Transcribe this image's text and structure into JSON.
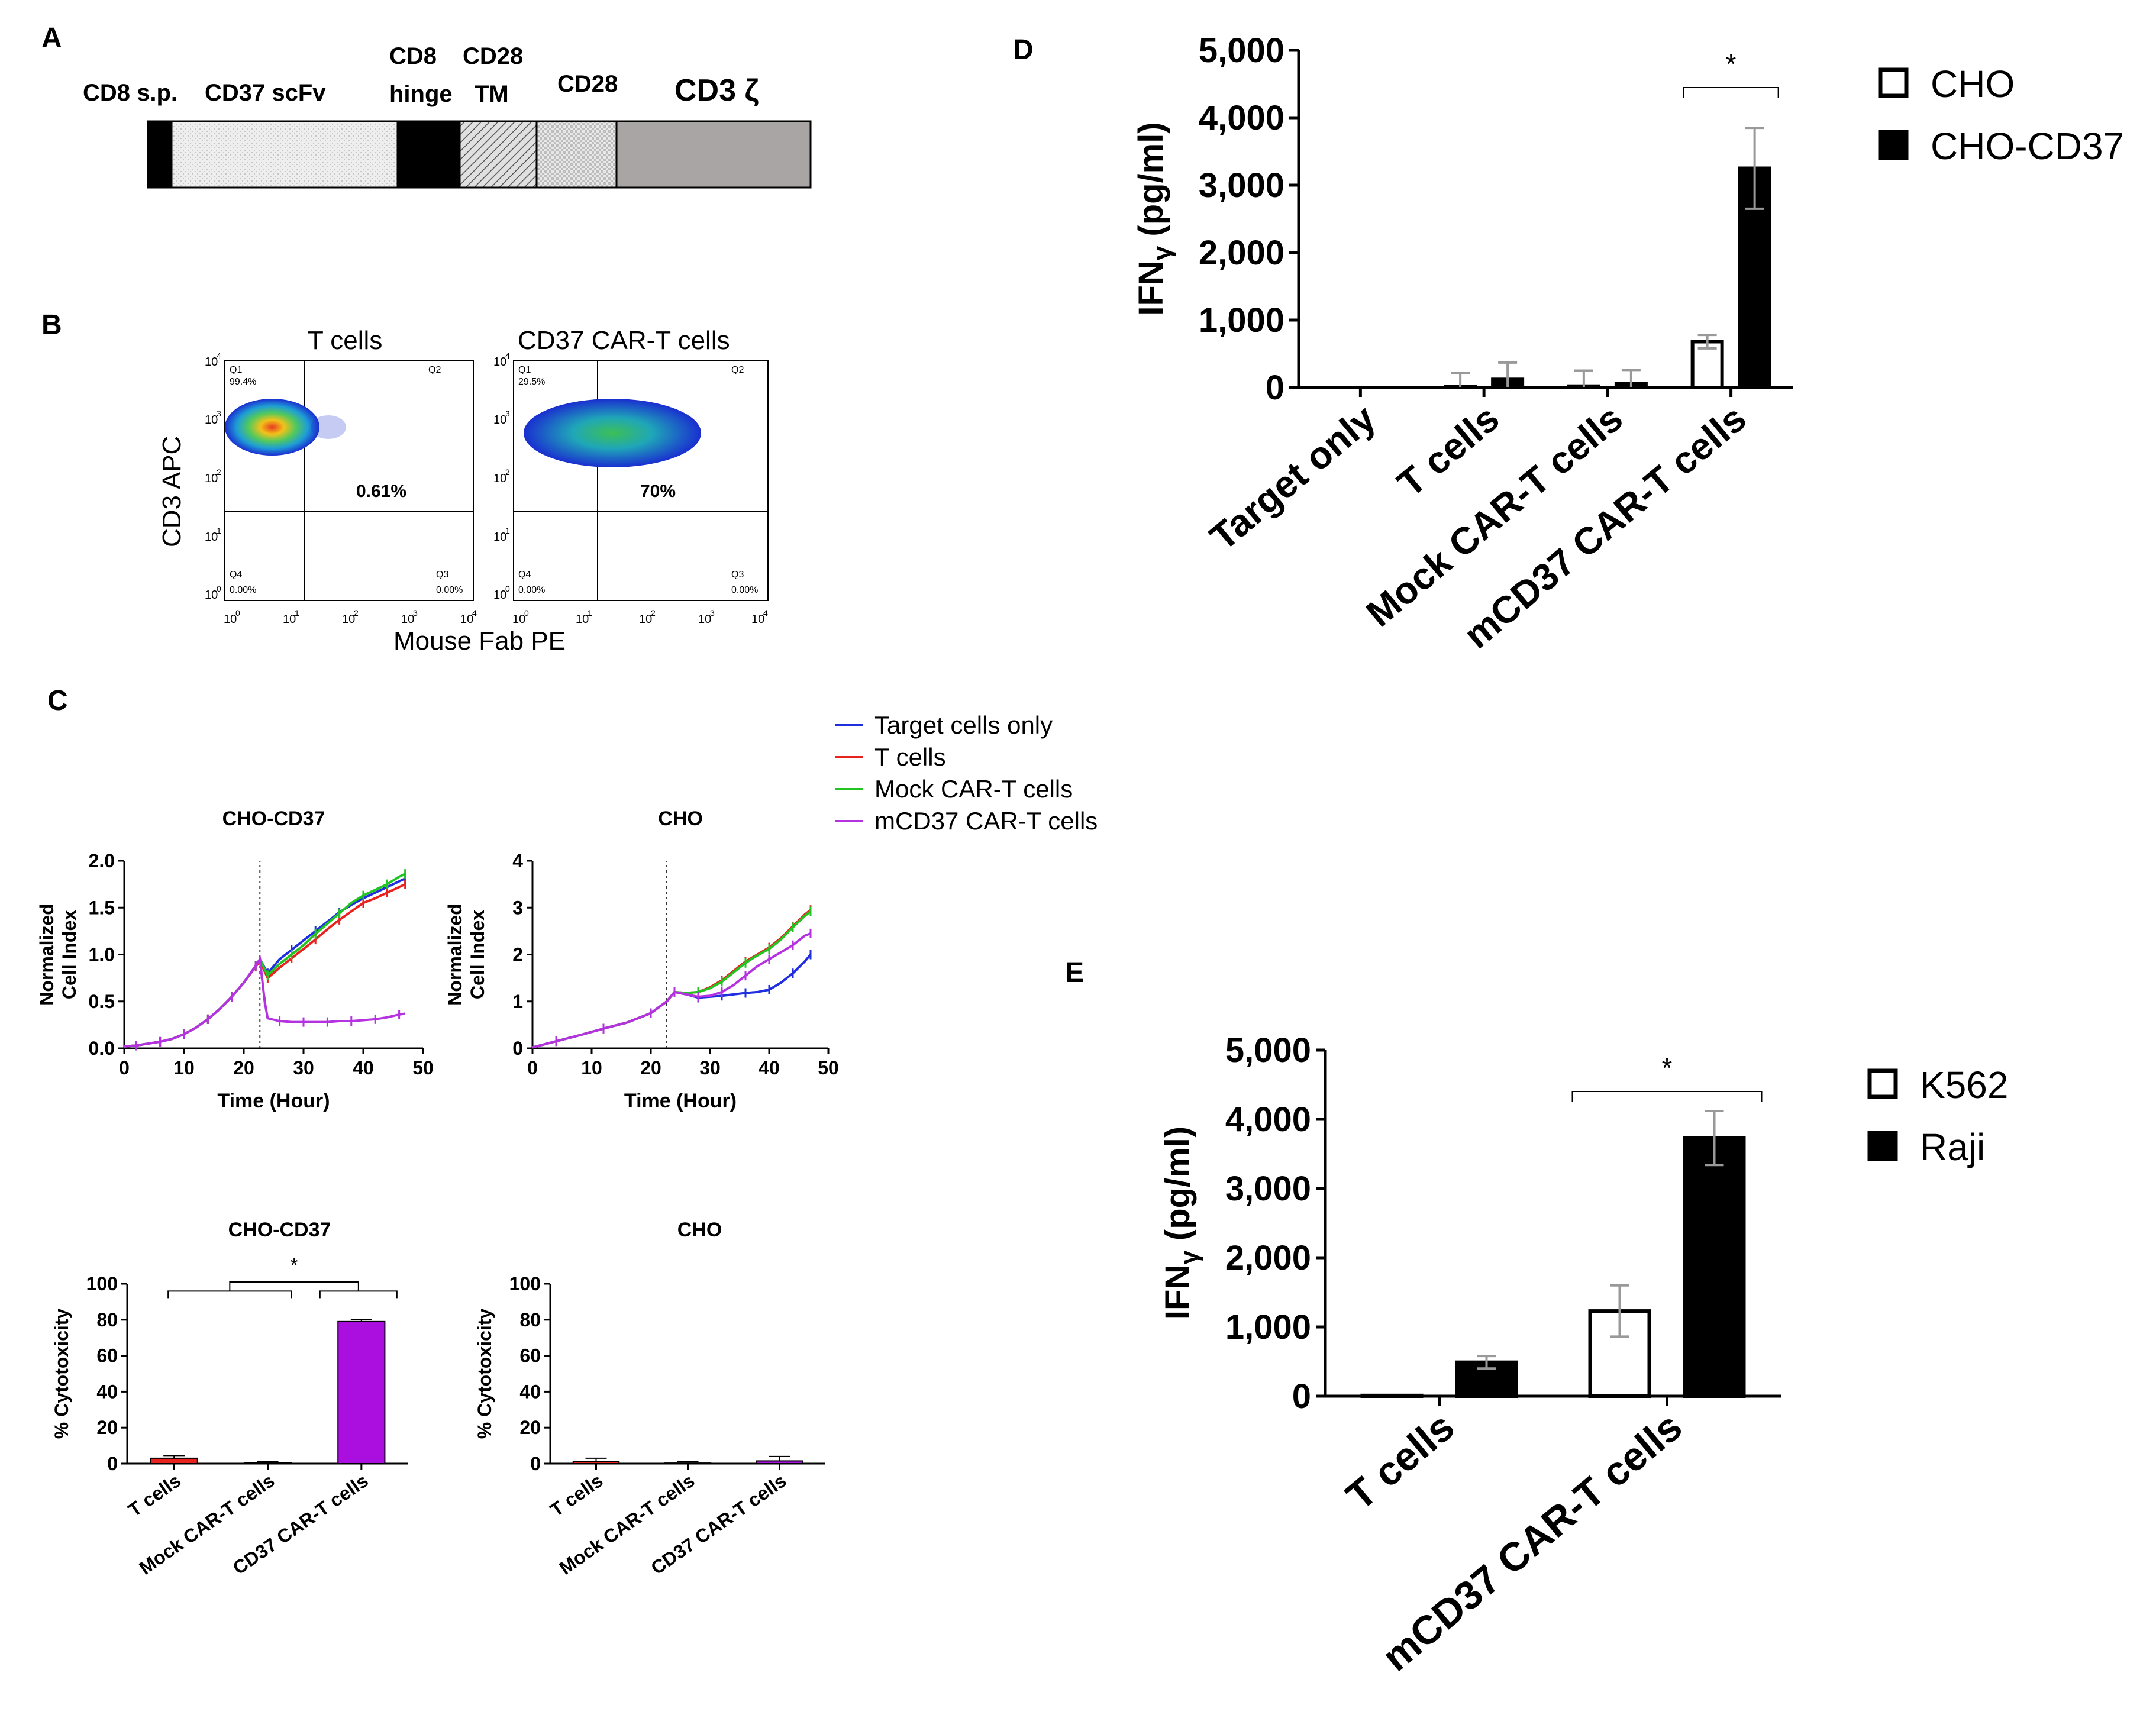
{
  "panels": {
    "A": {
      "label": "A",
      "segments": [
        {
          "label": "CD8 s.p.",
          "color": "#000000",
          "pattern": "solid"
        },
        {
          "label": "CD37 scFv",
          "color": "#eeeeee",
          "pattern": "dots-light"
        },
        {
          "label": "CD8 hinge",
          "line1": "CD8",
          "line2": "hinge",
          "color": "#000000",
          "pattern": "solid"
        },
        {
          "label": "CD28 TM",
          "line1": "CD28",
          "line2": "TM",
          "color": "#dddddd",
          "pattern": "diagonal"
        },
        {
          "label": "CD28",
          "color": "#e5e5e5",
          "pattern": "checker"
        },
        {
          "label": "CD3 ζ",
          "color": "#aaa5a5",
          "pattern": "solid"
        }
      ]
    },
    "B": {
      "label": "B",
      "plots": [
        {
          "title": "T cells",
          "q1": "Q1",
          "q1_pct": "99.4%",
          "q2": "Q2",
          "q3": "Q3",
          "q3_pct": "0.00%",
          "q4": "Q4",
          "q4_pct": "0.00%",
          "center_pct": "0.61%"
        },
        {
          "title": "CD37 CAR-T cells",
          "q1": "Q1",
          "q1_pct": "29.5%",
          "q2": "Q2",
          "q3": "Q3",
          "q3_pct": "0.00%",
          "q4": "Q4",
          "q4_pct": "0.00%",
          "center_pct": "70%"
        }
      ],
      "ylabel": "CD3 APC",
      "xlabel": "Mouse Fab PE",
      "ticks": [
        "10",
        "10",
        "10",
        "10",
        "10"
      ],
      "exponents": [
        "0",
        "1",
        "2",
        "3",
        "4"
      ]
    },
    "C": {
      "label": "C"
    },
    "D": {
      "label": "D"
    },
    "E": {
      "label": "E"
    }
  },
  "legend_c": [
    {
      "label": "Target cells only",
      "color": "#1f2fe0"
    },
    {
      "label": "T cells",
      "color": "#e8231f"
    },
    {
      "label": "Mock CAR-T cells",
      "color": "#22c422"
    },
    {
      "label": "mCD37 CAR-T cells",
      "color": "#b532e0"
    }
  ],
  "chart_data": [
    {
      "id": "c1",
      "type": "line",
      "title": "CHO-CD37",
      "xlabel": "Time (Hour)",
      "ylabel": "Normalized Cell Index",
      "ylabel_lines": [
        "Normalized",
        "Cell  Index"
      ],
      "xlim": [
        0,
        50
      ],
      "ylim": [
        0,
        2.0
      ],
      "xticks": [
        0,
        10,
        20,
        30,
        40,
        50
      ],
      "yticks": [
        0,
        0.5,
        1.0,
        1.5,
        2.0
      ],
      "ytick_labels": [
        "0.0",
        "0.5",
        "1.0",
        "1.5",
        "2.0"
      ],
      "vline": 22.7,
      "series": [
        {
          "name": "Target cells only",
          "color": "#1f2fe0",
          "x": [
            0,
            2,
            4,
            6,
            8,
            10,
            12,
            14,
            16,
            18,
            20,
            22,
            22.7,
            24,
            26,
            28,
            30,
            32,
            34,
            36,
            38,
            40,
            42,
            44,
            46,
            47
          ],
          "y": [
            0.02,
            0.03,
            0.05,
            0.07,
            0.1,
            0.15,
            0.22,
            0.31,
            0.42,
            0.55,
            0.7,
            0.88,
            0.95,
            0.8,
            0.95,
            1.05,
            1.15,
            1.25,
            1.35,
            1.45,
            1.53,
            1.6,
            1.66,
            1.72,
            1.78,
            1.81
          ]
        },
        {
          "name": "T cells",
          "color": "#e8231f",
          "x": [
            0,
            2,
            4,
            6,
            8,
            10,
            12,
            14,
            16,
            18,
            20,
            22,
            22.7,
            24,
            26,
            28,
            30,
            32,
            34,
            36,
            38,
            40,
            42,
            44,
            46,
            47
          ],
          "y": [
            0.02,
            0.03,
            0.05,
            0.07,
            0.1,
            0.15,
            0.22,
            0.31,
            0.42,
            0.55,
            0.7,
            0.87,
            0.93,
            0.75,
            0.86,
            0.96,
            1.06,
            1.16,
            1.27,
            1.37,
            1.46,
            1.55,
            1.6,
            1.66,
            1.72,
            1.75
          ]
        },
        {
          "name": "Mock CAR-T cells",
          "color": "#22c422",
          "x": [
            0,
            2,
            4,
            6,
            8,
            10,
            12,
            14,
            16,
            18,
            20,
            22,
            22.7,
            24,
            26,
            28,
            30,
            32,
            34,
            36,
            38,
            40,
            42,
            44,
            46,
            47
          ],
          "y": [
            0.02,
            0.03,
            0.05,
            0.07,
            0.1,
            0.15,
            0.22,
            0.31,
            0.42,
            0.55,
            0.7,
            0.88,
            0.95,
            0.78,
            0.9,
            1.0,
            1.1,
            1.22,
            1.33,
            1.44,
            1.55,
            1.63,
            1.69,
            1.75,
            1.83,
            1.86
          ]
        },
        {
          "name": "mCD37 CAR-T cells",
          "color": "#b532e0",
          "x": [
            0,
            2,
            4,
            6,
            8,
            10,
            12,
            14,
            16,
            18,
            20,
            22,
            22.7,
            23.5,
            24,
            26,
            28,
            30,
            32,
            34,
            36,
            38,
            40,
            42,
            44,
            46,
            47
          ],
          "y": [
            0.02,
            0.03,
            0.05,
            0.07,
            0.1,
            0.15,
            0.22,
            0.31,
            0.42,
            0.55,
            0.7,
            0.88,
            0.95,
            0.5,
            0.32,
            0.29,
            0.28,
            0.28,
            0.28,
            0.28,
            0.29,
            0.29,
            0.3,
            0.31,
            0.33,
            0.36,
            0.37
          ]
        }
      ]
    },
    {
      "id": "c2",
      "type": "line",
      "title": "CHO",
      "xlabel": "Time (Hour)",
      "ylabel": "Normalized Cell Index",
      "ylabel_lines": [
        "Normalized",
        "Cell  Index"
      ],
      "xlim": [
        0,
        50
      ],
      "ylim": [
        0,
        4
      ],
      "xticks": [
        0,
        10,
        20,
        30,
        40,
        50
      ],
      "yticks": [
        0,
        1,
        2,
        3,
        4
      ],
      "ytick_labels": [
        "0",
        "1",
        "2",
        "3",
        "4"
      ],
      "vline": 22.7,
      "series": [
        {
          "name": "Target cells only",
          "color": "#1f2fe0",
          "x": [
            0,
            4,
            8,
            12,
            16,
            20,
            22.7,
            24,
            26,
            28,
            30,
            32,
            34,
            36,
            38,
            40,
            42,
            44,
            46,
            47
          ],
          "y": [
            0.02,
            0.15,
            0.28,
            0.42,
            0.55,
            0.75,
            1.0,
            1.2,
            1.15,
            1.08,
            1.1,
            1.12,
            1.15,
            1.18,
            1.2,
            1.25,
            1.4,
            1.6,
            1.85,
            2.0
          ]
        },
        {
          "name": "T cells",
          "color": "#e8231f",
          "x": [
            0,
            4,
            8,
            12,
            16,
            20,
            22.7,
            24,
            26,
            28,
            30,
            32,
            34,
            36,
            38,
            40,
            42,
            44,
            46,
            47
          ],
          "y": [
            0.02,
            0.15,
            0.28,
            0.42,
            0.55,
            0.75,
            1.0,
            1.2,
            1.18,
            1.2,
            1.3,
            1.45,
            1.65,
            1.85,
            2.0,
            2.15,
            2.35,
            2.6,
            2.85,
            2.95
          ]
        },
        {
          "name": "Mock CAR-T cells",
          "color": "#22c422",
          "x": [
            0,
            4,
            8,
            12,
            16,
            20,
            22.7,
            24,
            26,
            28,
            30,
            32,
            34,
            36,
            38,
            40,
            42,
            44,
            46,
            47
          ],
          "y": [
            0.02,
            0.15,
            0.28,
            0.42,
            0.55,
            0.75,
            1.0,
            1.2,
            1.18,
            1.2,
            1.28,
            1.42,
            1.62,
            1.82,
            1.98,
            2.12,
            2.32,
            2.58,
            2.82,
            2.92
          ]
        },
        {
          "name": "mCD37 CAR-T cells",
          "color": "#b532e0",
          "x": [
            0,
            4,
            8,
            12,
            16,
            20,
            22.7,
            24,
            26,
            28,
            30,
            32,
            34,
            36,
            38,
            40,
            42,
            44,
            46,
            47
          ],
          "y": [
            0.02,
            0.15,
            0.28,
            0.42,
            0.55,
            0.75,
            1.0,
            1.2,
            1.15,
            1.1,
            1.12,
            1.2,
            1.35,
            1.55,
            1.75,
            1.9,
            2.05,
            2.2,
            2.4,
            2.45
          ]
        }
      ]
    },
    {
      "id": "c3",
      "type": "bar",
      "title": "CHO-CD37",
      "ylabel": "% Cytotoxicity",
      "ylim": [
        0,
        100
      ],
      "yticks": [
        0,
        20,
        40,
        60,
        80,
        100
      ],
      "categories": [
        "T cells",
        "Mock CAR-T cells",
        "CD37 CAR-T cells"
      ],
      "values": [
        3,
        0.5,
        79
      ],
      "errors": [
        1.5,
        0.5,
        1.2
      ],
      "colors": [
        "#e8231f",
        "#22c422",
        "#aa0fe0"
      ],
      "significance": "*"
    },
    {
      "id": "c4",
      "type": "bar",
      "title": "CHO",
      "ylabel": "% Cytotoxicity",
      "ylim": [
        0,
        100
      ],
      "yticks": [
        0,
        20,
        40,
        60,
        80,
        100
      ],
      "categories": [
        "T cells",
        "Mock CAR-T cells",
        "CD37 CAR-T cells"
      ],
      "values": [
        1,
        0.3,
        1.5
      ],
      "errors": [
        2,
        0.8,
        2.5
      ],
      "colors": [
        "#e8231f",
        "#22c422",
        "#aa0fe0"
      ]
    },
    {
      "id": "d",
      "type": "bar",
      "title": "",
      "ylabel": "IFNγ (pg/ml)",
      "ylabel_main": "IFN",
      "ylabel_sub": "γ",
      "ylabel_rest": " (pg/ml)",
      "ylim": [
        0,
        5000
      ],
      "yticks": [
        0,
        1000,
        2000,
        3000,
        4000,
        5000
      ],
      "ytick_labels": [
        "0",
        "1,000",
        "2,000",
        "3,000",
        "4,000",
        "5,000"
      ],
      "categories": [
        "Target only",
        "T cells",
        "Mock CAR-T cells",
        "mCD37 CAR-T cells"
      ],
      "series": [
        {
          "name": "CHO",
          "fill": "#ffffff",
          "values": [
            0,
            10,
            20,
            680
          ],
          "errors": [
            0,
            200,
            230,
            100
          ]
        },
        {
          "name": "CHO-CD37",
          "fill": "#000000",
          "values": [
            0,
            120,
            60,
            3250
          ],
          "errors": [
            0,
            250,
            200,
            600
          ]
        }
      ],
      "significance": "*"
    },
    {
      "id": "e",
      "type": "bar",
      "title": "",
      "ylabel": "IFNγ (pg/ml)",
      "ylabel_main": "IFN",
      "ylabel_sub": "γ",
      "ylabel_rest": " (pg/ml)",
      "ylim": [
        0,
        5000
      ],
      "yticks": [
        0,
        1000,
        2000,
        3000,
        4000,
        5000
      ],
      "ytick_labels": [
        "0",
        "1,000",
        "2,000",
        "3,000",
        "4,000",
        "5,000"
      ],
      "categories": [
        "T cells",
        "mCD37 CAR-T cells"
      ],
      "series": [
        {
          "name": "K562",
          "fill": "#ffffff",
          "values": [
            10,
            1230
          ],
          "errors": [
            0,
            370
          ]
        },
        {
          "name": "Raji",
          "fill": "#000000",
          "values": [
            490,
            3730
          ],
          "errors": [
            90,
            390
          ]
        }
      ],
      "significance": "*"
    }
  ]
}
